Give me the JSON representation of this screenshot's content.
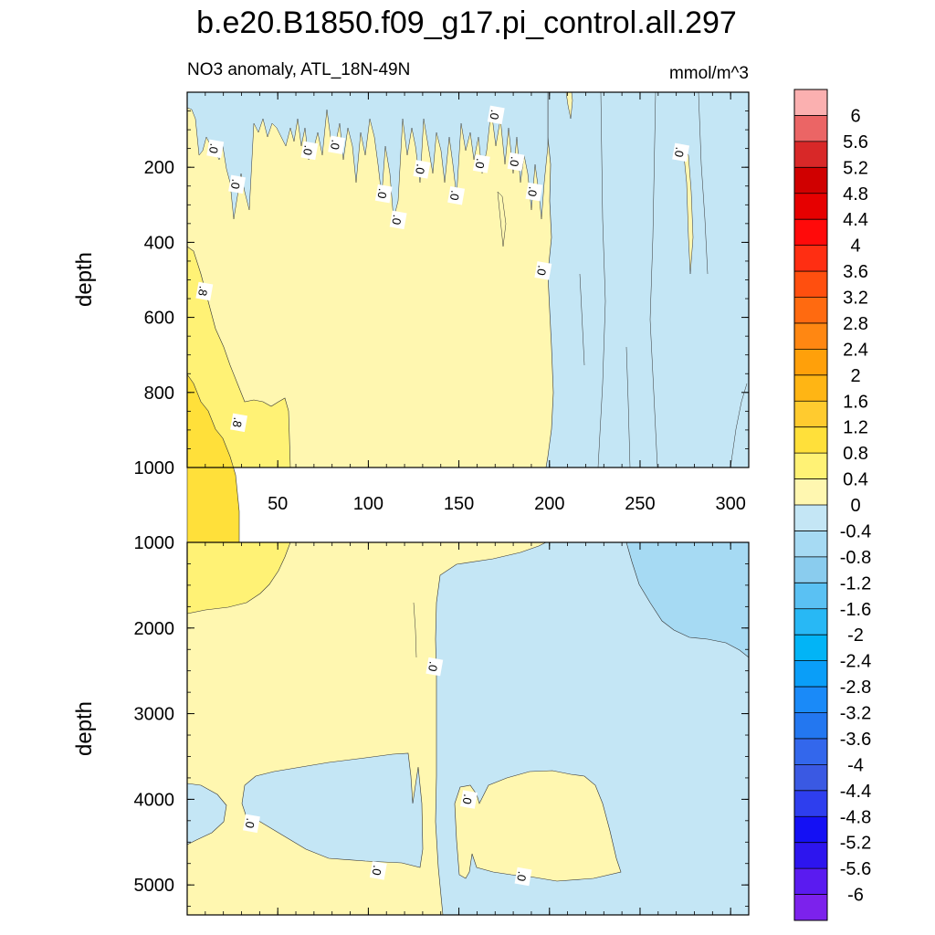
{
  "chart_data": {
    "type": "contour",
    "title": "b.e20.B1850.f09_g17.pi_control.all.297",
    "subtitle": "NO3 anomaly, ATL_18N-49N",
    "units": "mmol/m^3",
    "colorbar": {
      "labels": [
        "6",
        "5.6",
        "5.2",
        "4.8",
        "4.4",
        "4",
        "3.6",
        "3.2",
        "2.8",
        "2.4",
        "2",
        "1.6",
        "1.2",
        "0.8",
        "0.4",
        "0",
        "-0.4",
        "-0.8",
        "-1.2",
        "-1.6",
        "-2",
        "-2.4",
        "-2.8",
        "-3.2",
        "-3.6",
        "-4",
        "-4.4",
        "-4.8",
        "-5.2",
        "-5.6",
        "-6"
      ],
      "colors": [
        "#FBB0B0",
        "#EB6565",
        "#D82828",
        "#D00000",
        "#E60000",
        "#FF0A0A",
        "#FF2E12",
        "#FF4F0F",
        "#FF6A10",
        "#FF8712",
        "#FFA00A",
        "#FFB514",
        "#FFCB2F",
        "#FFE03A",
        "#FFF275",
        "#FFF7B0",
        "#C4E6F5",
        "#A6DAF3",
        "#8ACCEE",
        "#5AC1F3",
        "#28B8F5",
        "#02B4F6",
        "#0A9EF8",
        "#1A8AF8",
        "#2377F0",
        "#3367EC",
        "#3A59E3",
        "#2E3EEE",
        "#1410F4",
        "#2D15EE",
        "#5A1BF0",
        "#7C22EC"
      ]
    },
    "panels": [
      {
        "name": "upper",
        "ylabel": "depth",
        "ylim": [
          0,
          1000
        ],
        "yticks": [
          200,
          400,
          600,
          800,
          1000
        ],
        "xlim": [
          0,
          310
        ],
        "xticks": [
          50,
          100,
          150,
          200,
          250,
          300
        ],
        "contour_labels": [
          {
            "text": ".0",
            "x": 15,
            "depth": 150
          },
          {
            "text": ".0",
            "x": 27,
            "depth": 245
          },
          {
            "text": ".0",
            "x": 67,
            "depth": 155
          },
          {
            "text": ".0",
            "x": 82,
            "depth": 140
          },
          {
            "text": ".0",
            "x": 108,
            "depth": 270
          },
          {
            "text": ".0",
            "x": 116,
            "depth": 340
          },
          {
            "text": ".0",
            "x": 129,
            "depth": 205
          },
          {
            "text": ".0",
            "x": 148,
            "depth": 275
          },
          {
            "text": ".0",
            "x": 162,
            "depth": 190
          },
          {
            "text": ".0",
            "x": 170,
            "depth": 60
          },
          {
            "text": ".0",
            "x": 181,
            "depth": 185
          },
          {
            "text": ".0",
            "x": 191,
            "depth": 265
          },
          {
            "text": ".0",
            "x": 196,
            "depth": 475
          },
          {
            "text": ".0",
            "x": 272,
            "depth": 160
          },
          {
            "text": ".8",
            "x": 9,
            "depth": 530
          },
          {
            "text": ".8",
            "x": 28,
            "depth": 880
          }
        ]
      },
      {
        "name": "lower",
        "ylabel": "depth",
        "ylim": [
          1000,
          5350
        ],
        "yticks": [
          1000,
          2000,
          3000,
          4000,
          5000
        ],
        "xlim": [
          0,
          310
        ],
        "contour_labels": [
          {
            "text": ".0",
            "x": 136,
            "depth": 2450
          },
          {
            "text": ".0",
            "x": 35,
            "depth": 4280
          },
          {
            "text": ".0",
            "x": 105,
            "depth": 4830
          },
          {
            "text": ".0",
            "x": 155,
            "depth": 4000
          },
          {
            "text": ".0",
            "x": 185,
            "depth": 4900
          }
        ]
      }
    ]
  }
}
